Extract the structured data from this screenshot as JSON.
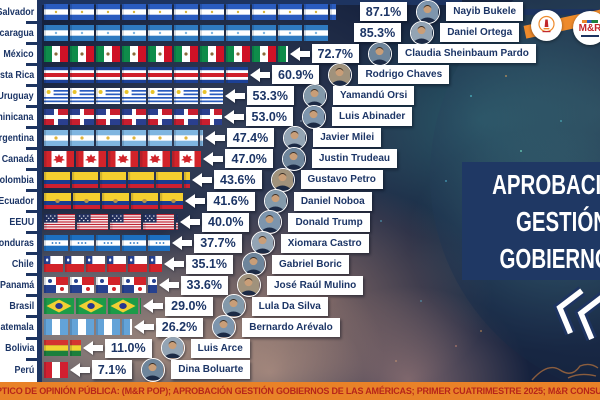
{
  "title_box": {
    "lines": [
      "APROBACIÓN",
      "GESTIÓN",
      "GOBIERNOS"
    ]
  },
  "badges": {
    "mr_label": "M&R"
  },
  "footer_banner": {
    "text": "PTICO DE OPINIÓN PÚBLICA: (M&R POP); APROBACIÓN GESTIÓN GOBIERNOS DE LAS AMÉRICAS; PRIMER CUATRIMESTRE 2025; M&R CONSULTO"
  },
  "colors": {
    "navy": "#1d3461",
    "title_box_bg": "#1f3864",
    "text_navy": "#1c3566",
    "banner_bg": "#e98228",
    "banner_text": "#b7251a",
    "box_bg": "#ffffff"
  },
  "chart_data": {
    "type": "bar",
    "orientation": "horizontal",
    "title": "APROBACIÓN GESTIÓN GOBIERNOS",
    "value_suffix": "%",
    "xlim": [
      0,
      100
    ],
    "categories": [
      "El Salvador",
      "Nicaragua",
      "México",
      "Costa Rica",
      "Uruguay",
      "Dominicana",
      "Argentina",
      "Canadá",
      "Colombia",
      "Ecuador",
      "EEUU",
      "Honduras",
      "Chile",
      "Panamá",
      "Brasil",
      "Guatemala",
      "Bolivia",
      "Perú"
    ],
    "values": [
      87.1,
      85.3,
      72.7,
      60.9,
      53.3,
      53.0,
      47.4,
      47.0,
      43.6,
      41.6,
      40.0,
      37.7,
      35.1,
      33.6,
      29.0,
      26.2,
      11.0,
      7.1
    ],
    "value_labels": [
      "87.1%",
      "85.3%",
      "72.7%",
      "60.9%",
      "53.3%",
      "53.0%",
      "47.4%",
      "47.0%",
      "43.6%",
      "41.6%",
      "40.0%",
      "37.7%",
      "35.1%",
      "33.6%",
      "29.0%",
      "26.2%",
      "11.0%",
      "7.1%"
    ],
    "leaders": [
      "Nayib Bukele",
      "Daniel Ortega",
      "Claudia Sheinbaum Pardo",
      "Rodrigo Chaves",
      "Yamandú Orsi",
      "Luis Abinader",
      "Javier Milei",
      "Justin Trudeau",
      "Gustavo Petro",
      "Daniel Noboa",
      "Donald Trump",
      "Xiomara Castro",
      "Gabriel Boric",
      "José Raúl Mulino",
      "Lula Da Silva",
      "Bernardo Arévalo",
      "Luis Arce",
      "Dina Boluarte"
    ],
    "flags": [
      "sv",
      "ni",
      "mx",
      "cr",
      "uy",
      "do",
      "ar",
      "ca",
      "co",
      "ec",
      "us",
      "hn",
      "cl",
      "pa",
      "br",
      "gt",
      "bo",
      "pe"
    ]
  }
}
